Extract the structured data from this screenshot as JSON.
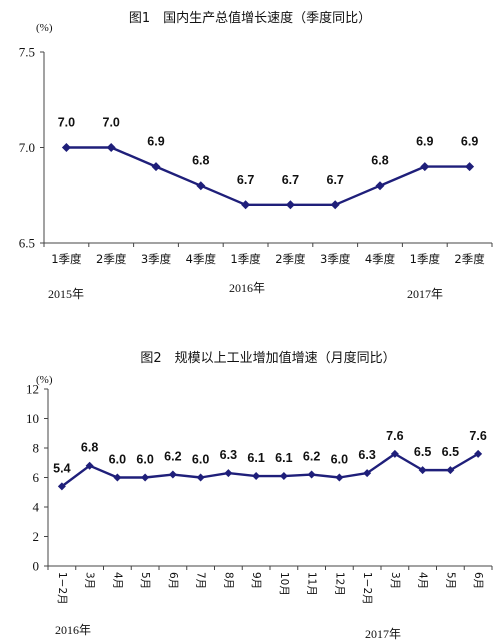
{
  "chart_data": [
    {
      "type": "line",
      "title": "图1　国内生产总值增长速度（季度同比）",
      "unit": "(%)",
      "ylim": [
        6.5,
        7.5
      ],
      "yticks": [
        "6.5",
        "7.0",
        "7.5"
      ],
      "grid": false,
      "color": "#1f1f7a",
      "categories": [
        "1季度",
        "2季度",
        "3季度",
        "4季度",
        "1季度",
        "2季度",
        "3季度",
        "4季度",
        "1季度",
        "2季度"
      ],
      "year_labels": [
        "2015年",
        "2016年",
        "2017年"
      ],
      "series": [
        {
          "values": [
            7.0,
            7.0,
            6.9,
            6.8,
            6.7,
            6.7,
            6.7,
            6.8,
            6.9,
            6.9
          ],
          "labels": [
            "7.0",
            "7.0",
            "6.9",
            "6.8",
            "6.7",
            "6.7",
            "6.7",
            "6.8",
            "6.9",
            "6.9"
          ]
        }
      ]
    },
    {
      "type": "line",
      "title": "图2　规模以上工业增加值增速（月度同比）",
      "unit": "(%)",
      "ylim": [
        0,
        12
      ],
      "yticks": [
        "0",
        "2",
        "4",
        "6",
        "8",
        "10",
        "12"
      ],
      "grid": false,
      "color": "#1f1f7a",
      "categories": [
        "1−2月",
        "3月",
        "4月",
        "5月",
        "6月",
        "7月",
        "8月",
        "9月",
        "10月",
        "11月",
        "12月",
        "1−2月",
        "3月",
        "4月",
        "5月",
        "6月"
      ],
      "year_labels": [
        "2016年",
        "2017年"
      ],
      "series": [
        {
          "values": [
            5.4,
            6.8,
            6.0,
            6.0,
            6.2,
            6.0,
            6.3,
            6.1,
            6.1,
            6.2,
            6.0,
            6.3,
            7.6,
            6.5,
            6.5,
            7.6
          ],
          "labels": [
            "5.4",
            "6.8",
            "6.0",
            "6.0",
            "6.2",
            "6.0",
            "6.3",
            "6.1",
            "6.1",
            "6.2",
            "6.0",
            "6.3",
            "7.6",
            "6.5",
            "6.5",
            "7.6"
          ]
        }
      ]
    }
  ]
}
